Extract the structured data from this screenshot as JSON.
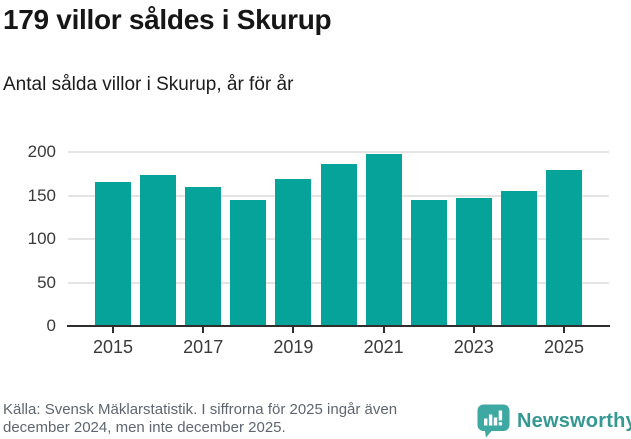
{
  "header": {
    "title": "179 villor såldes i Skurup",
    "subtitle": "Antal sålda villor i Skurup, år för år"
  },
  "chart_data": {
    "type": "bar",
    "categories": [
      "2015",
      "2016",
      "2017",
      "2018",
      "2019",
      "2020",
      "2021",
      "2022",
      "2023",
      "2024",
      "2025"
    ],
    "values": [
      165,
      174,
      160,
      145,
      169,
      186,
      198,
      145,
      147,
      155,
      179
    ],
    "title": "179 villor såldes i Skurup",
    "subtitle": "Antal sålda villor i Skurup, år för år",
    "xlabel": "",
    "ylabel": "",
    "ylim": [
      0,
      200
    ],
    "yticks": [
      0,
      50,
      100,
      150,
      200
    ],
    "xtick_labels": [
      "2015",
      "2017",
      "2019",
      "2021",
      "2023",
      "2025"
    ],
    "grid": true,
    "legend": false,
    "bar_color": "#06a39a"
  },
  "footer": {
    "source_line1": "Källa: Svensk Mäklarstatistik. I siffrorna för 2025 ingår även",
    "source_line2": "december 2024, men inte december 2025.",
    "brand": "Newsworthy"
  },
  "colors": {
    "bar": "#06a39a",
    "gridline": "#e4e4e4",
    "axis_line": "#2e2e2e",
    "axis_text": "#3a3a3a",
    "footer_text": "#5f6570",
    "brand_teal": "#359893",
    "logo_icon": "#3ea8a2"
  }
}
